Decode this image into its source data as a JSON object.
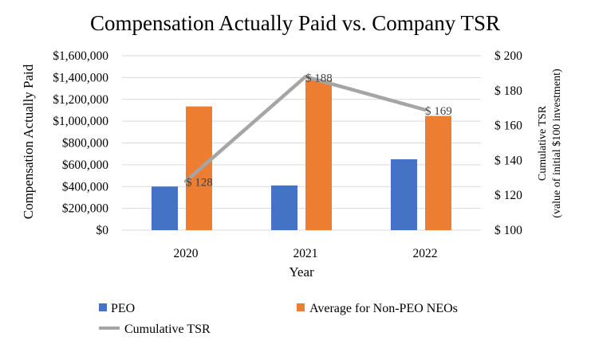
{
  "chart_data": {
    "type": "bar",
    "title": "Compensation Actually Paid vs. Company TSR",
    "xlabel": "Year",
    "ylabel": "Compensation Actually Paid",
    "y2label_line1": "Cumulative TSR",
    "y2label_line2": "(value of initial $100 investment)",
    "categories": [
      "2020",
      "2021",
      "2022"
    ],
    "ylim": [
      0,
      1600000
    ],
    "y_ticks": [
      0,
      200000,
      400000,
      600000,
      800000,
      1000000,
      1200000,
      1400000,
      1600000
    ],
    "y_tick_labels": [
      "$0",
      "$200,000",
      "$400,000",
      "$600,000",
      "$800,000",
      "$1,000,000",
      "$1,200,000",
      "$1,400,000",
      "$1,600,000"
    ],
    "y2lim": [
      100,
      200
    ],
    "y2_ticks": [
      100,
      120,
      140,
      160,
      180,
      200
    ],
    "y2_tick_labels": [
      "$ 100",
      "$ 120",
      "$ 140",
      "$ 160",
      "$ 180",
      "$ 200"
    ],
    "series": [
      {
        "name": "PEO",
        "kind": "bar",
        "axis": "left",
        "color": "#4472c4",
        "values": [
          400000,
          410000,
          650000
        ]
      },
      {
        "name": "Average for Non-PEO NEOs",
        "kind": "bar",
        "axis": "left",
        "color": "#ed7d31",
        "values": [
          1135000,
          1375000,
          1048000
        ]
      },
      {
        "name": "Cumulative TSR",
        "kind": "line",
        "axis": "right",
        "color": "#a5a5a5",
        "values": [
          128,
          188,
          169
        ],
        "labels": [
          "$ 128",
          "$ 188",
          "$ 169"
        ]
      }
    ],
    "legend": {
      "position": "bottom"
    },
    "grid": true
  }
}
